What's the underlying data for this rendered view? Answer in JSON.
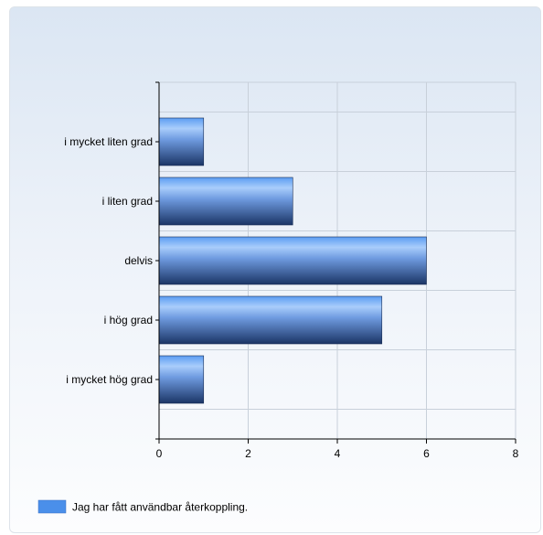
{
  "chart_data": {
    "type": "bar",
    "orientation": "horizontal",
    "categories": [
      "i mycket liten grad",
      "i liten grad",
      "delvis",
      "i hög grad",
      "i mycket hög grad"
    ],
    "series": [
      {
        "name": "Jag har fått användbar återkoppling.",
        "values": [
          1,
          3,
          6,
          5,
          1
        ],
        "color": "#4a8fea"
      }
    ],
    "xlim": [
      0,
      8
    ],
    "xticks": [
      "0",
      "2",
      "4",
      "6",
      "8"
    ],
    "grid": true,
    "legend_position": "bottom-left"
  }
}
